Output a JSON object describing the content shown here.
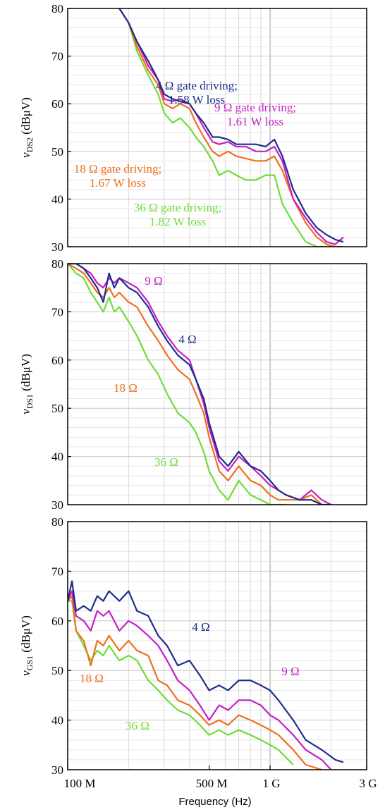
{
  "xlabel": "Frequency (Hz)",
  "x_tick_labels": [
    "100 M",
    "500 M",
    "1 G",
    "3 G"
  ],
  "x_tick_values": [
    100,
    500,
    1000,
    3000
  ],
  "colors": {
    "4": "#1f2e8a",
    "9": "#c51fc5",
    "18": "#f0701e",
    "36": "#6fdc3a"
  },
  "chart_data": [
    {
      "type": "line",
      "ylabel_var": "v",
      "ylabel_sub": "DS2",
      "ylabel_unit": "(dBμV)",
      "xscale": "log",
      "xlim": [
        100,
        3000
      ],
      "ylim": [
        30,
        80
      ],
      "yticks": [
        30,
        40,
        50,
        60,
        70,
        80
      ],
      "grid": true,
      "annotations": [
        {
          "key": "4",
          "lines": [
            "4 Ω gate driving;",
            "1.58 W loss"
          ]
        },
        {
          "key": "9",
          "lines": [
            "9 Ω gate driving;",
            "1.61 W loss"
          ]
        },
        {
          "key": "18",
          "lines": [
            "18 Ω gate driving;",
            "1.67 W loss"
          ]
        },
        {
          "key": "36",
          "lines": [
            "36 Ω gate driving;",
            "1.82 W loss"
          ]
        }
      ],
      "series": [
        {
          "key": "4",
          "x": [
            180,
            200,
            220,
            250,
            280,
            300,
            330,
            360,
            400,
            430,
            470,
            520,
            560,
            620,
            680,
            760,
            850,
            950,
            1050,
            1150,
            1300,
            1500,
            1700,
            1900,
            2100,
            2300
          ],
          "y": [
            80,
            77,
            73,
            69,
            65,
            62,
            61,
            60.5,
            60,
            58,
            56,
            53,
            53,
            52.5,
            51.5,
            51.5,
            51.5,
            51,
            52.5,
            49,
            42,
            37,
            34,
            32.5,
            31.5,
            31
          ]
        },
        {
          "key": "9",
          "x": [
            180,
            200,
            220,
            250,
            280,
            300,
            330,
            360,
            400,
            430,
            470,
            520,
            560,
            620,
            680,
            760,
            850,
            950,
            1050,
            1150,
            1300,
            1500,
            1700,
            1900,
            2100,
            2300
          ],
          "y": [
            80,
            77,
            73,
            68,
            65,
            61,
            60.5,
            61,
            60,
            58,
            55,
            52,
            51.5,
            52,
            51,
            51,
            50,
            50,
            51,
            48,
            40,
            36,
            33,
            31,
            30.5,
            32
          ]
        },
        {
          "key": "18",
          "x": [
            180,
            200,
            220,
            250,
            280,
            300,
            330,
            360,
            400,
            430,
            470,
            520,
            560,
            620,
            680,
            760,
            850,
            950,
            1050,
            1150,
            1300,
            1500,
            1700,
            1900,
            2100,
            2300
          ],
          "y": [
            80,
            77,
            72,
            67,
            64,
            60,
            59,
            60,
            59,
            56,
            53,
            50,
            49,
            50,
            49,
            48.5,
            48,
            48,
            49,
            46,
            40,
            35,
            32,
            30.5,
            30,
            30
          ]
        },
        {
          "key": "36",
          "x": [
            180,
            200,
            220,
            250,
            280,
            300,
            330,
            360,
            400,
            430,
            470,
            520,
            560,
            620,
            680,
            760,
            850,
            950,
            1050,
            1150,
            1300,
            1500,
            1700,
            1900,
            2100
          ],
          "y": [
            80,
            77,
            71,
            66,
            62,
            58,
            56,
            57,
            55,
            53,
            51,
            48,
            45,
            46,
            45,
            44,
            44,
            45,
            45,
            39,
            35,
            31,
            30,
            30,
            30
          ]
        }
      ]
    },
    {
      "type": "line",
      "ylabel_var": "v",
      "ylabel_sub": "DS1",
      "ylabel_unit": "(dBμV)",
      "xscale": "log",
      "xlim": [
        100,
        3000
      ],
      "ylim": [
        30,
        80
      ],
      "yticks": [
        30,
        40,
        50,
        60,
        70,
        80
      ],
      "grid": true,
      "annotations": [
        {
          "key": "9",
          "lines": [
            "9 Ω"
          ]
        },
        {
          "key": "4",
          "lines": [
            "4 Ω"
          ]
        },
        {
          "key": "18",
          "lines": [
            "18 Ω"
          ]
        },
        {
          "key": "36",
          "lines": [
            "36 Ω"
          ]
        }
      ],
      "series": [
        {
          "key": "4",
          "x": [
            100,
            110,
            120,
            130,
            140,
            150,
            160,
            170,
            180,
            200,
            220,
            250,
            280,
            310,
            350,
            400,
            430,
            470,
            500,
            560,
            620,
            700,
            800,
            900,
            1000,
            1100,
            1200,
            1400,
            1600,
            1800,
            2000
          ],
          "y": [
            80,
            80,
            79,
            77,
            75,
            72,
            78,
            75,
            77,
            75,
            74,
            71,
            67,
            64,
            61,
            59,
            56,
            52,
            47,
            40,
            38,
            41,
            38,
            37,
            35,
            33,
            32,
            31,
            31,
            30,
            30
          ]
        },
        {
          "key": "9",
          "x": [
            100,
            110,
            120,
            130,
            140,
            150,
            160,
            170,
            180,
            200,
            220,
            250,
            280,
            310,
            350,
            400,
            430,
            470,
            500,
            560,
            620,
            700,
            800,
            900,
            1000,
            1100,
            1200,
            1400,
            1600,
            1800,
            2000
          ],
          "y": [
            80,
            80,
            79,
            78,
            76,
            75,
            77,
            76,
            77,
            76,
            75,
            72,
            68,
            65,
            62,
            60,
            56,
            51,
            46,
            39,
            37,
            40,
            38,
            36,
            34,
            33,
            32,
            31,
            33,
            31,
            30
          ]
        },
        {
          "key": "18",
          "x": [
            100,
            110,
            120,
            130,
            140,
            150,
            160,
            170,
            180,
            200,
            220,
            250,
            280,
            310,
            350,
            400,
            430,
            470,
            500,
            560,
            620,
            700,
            800,
            900,
            1000,
            1100,
            1200,
            1400,
            1600,
            1800
          ],
          "y": [
            80,
            79,
            78,
            76,
            74,
            73,
            75,
            73,
            74,
            72,
            71,
            67,
            64,
            61,
            58,
            56,
            53,
            49,
            44,
            37,
            35,
            38,
            35,
            34,
            32,
            31,
            31,
            31,
            32,
            30
          ]
        },
        {
          "key": "36",
          "x": [
            100,
            110,
            120,
            130,
            140,
            150,
            160,
            170,
            180,
            200,
            220,
            250,
            280,
            310,
            350,
            400,
            430,
            470,
            500,
            560,
            620,
            700,
            800,
            900,
            1000,
            1100,
            1200
          ],
          "y": [
            80,
            78,
            77,
            74,
            72,
            70,
            73,
            70,
            71,
            68,
            65,
            60,
            57,
            53,
            49,
            47,
            45,
            41,
            37,
            33,
            31,
            35,
            32,
            31,
            30,
            30,
            30
          ]
        }
      ]
    },
    {
      "type": "line",
      "ylabel_var": "v",
      "ylabel_sub": "GS1",
      "ylabel_unit": "(dBμV)",
      "xscale": "log",
      "xlim": [
        100,
        3000
      ],
      "ylim": [
        30,
        80
      ],
      "yticks": [
        30,
        40,
        50,
        60,
        70,
        80
      ],
      "grid": true,
      "annotations": [
        {
          "key": "4",
          "lines": [
            "4 Ω"
          ]
        },
        {
          "key": "18",
          "lines": [
            "18 Ω"
          ]
        },
        {
          "key": "9",
          "lines": [
            "9 Ω"
          ]
        },
        {
          "key": "36",
          "lines": [
            "36 Ω"
          ]
        }
      ],
      "series": [
        {
          "key": "4",
          "x": [
            100,
            105,
            110,
            120,
            130,
            140,
            150,
            160,
            180,
            200,
            220,
            250,
            280,
            310,
            350,
            400,
            450,
            500,
            560,
            620,
            700,
            800,
            900,
            1000,
            1100,
            1300,
            1500,
            1800,
            2100,
            2300
          ],
          "y": [
            64,
            68,
            62,
            63,
            62,
            65,
            64,
            66,
            64,
            66,
            62,
            61,
            57,
            55,
            51,
            52,
            49,
            46,
            47,
            46,
            48,
            48,
            47,
            46,
            44,
            40,
            36,
            34,
            32,
            31.5
          ]
        },
        {
          "key": "9",
          "x": [
            100,
            105,
            110,
            120,
            130,
            140,
            150,
            160,
            180,
            200,
            220,
            250,
            280,
            310,
            350,
            400,
            450,
            500,
            560,
            620,
            700,
            800,
            900,
            1000,
            1100,
            1300,
            1500,
            1800,
            2000
          ],
          "y": [
            64,
            66,
            61,
            60,
            58,
            62,
            61,
            62,
            58,
            60,
            59,
            57,
            55,
            52,
            48,
            46,
            43,
            40,
            43,
            42,
            44,
            44,
            43,
            41,
            40,
            37,
            34,
            32,
            30
          ]
        },
        {
          "key": "18",
          "x": [
            100,
            105,
            110,
            120,
            130,
            140,
            150,
            160,
            180,
            200,
            220,
            250,
            280,
            310,
            350,
            400,
            450,
            500,
            560,
            620,
            700,
            800,
            900,
            1000,
            1100,
            1300,
            1500,
            1800
          ],
          "y": [
            64,
            65,
            58,
            56,
            51,
            56,
            55,
            57,
            54,
            56,
            54,
            53,
            48,
            47,
            44,
            43,
            41,
            39,
            40,
            39,
            41,
            40,
            39,
            38,
            37,
            34,
            31,
            30
          ]
        },
        {
          "key": "36",
          "x": [
            100,
            105,
            110,
            120,
            130,
            140,
            150,
            160,
            180,
            200,
            220,
            250,
            280,
            310,
            350,
            400,
            450,
            500,
            560,
            620,
            700,
            800,
            900,
            1000,
            1100,
            1300
          ],
          "y": [
            64,
            64,
            58,
            55,
            52,
            54,
            53,
            55,
            52,
            53,
            52,
            48,
            46,
            44,
            42,
            41,
            39,
            37,
            38,
            37,
            38,
            37,
            36,
            35,
            34,
            31
          ]
        }
      ]
    }
  ]
}
